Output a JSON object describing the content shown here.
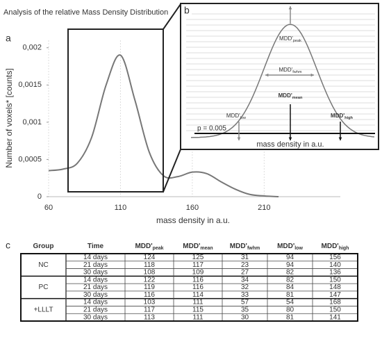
{
  "title": "Analysis of the relative Mass Density Distribution",
  "panel_labels": [
    "a",
    "b",
    "c"
  ],
  "chart_data": {
    "type": "line",
    "x_label": "mass density in a.u.",
    "y_label": "Number of voxels* [counts]",
    "x": [
      60,
      70,
      80,
      90,
      100,
      110,
      120,
      130,
      140,
      150,
      160,
      170,
      180,
      190,
      200,
      210,
      220
    ],
    "series": [
      {
        "color": "#777777",
        "values": [
          0.00035,
          0.00037,
          0.00045,
          0.0008,
          0.0015,
          0.0019,
          0.0013,
          0.0006,
          0.00028,
          0.00027,
          0.00033,
          0.00031,
          0.0002,
          0.0001,
          3e-05,
          1e-05,
          0
        ]
      }
    ],
    "xlim": [
      60,
      263
    ],
    "ylim": [
      0,
      0.0021
    ],
    "xticks": [
      60,
      110,
      160,
      210
    ],
    "yticks": [
      0,
      {
        "value": 0.0005,
        "label": "0,0005"
      },
      {
        "value": 0.001,
        "label": "0,001"
      },
      {
        "value": 0.0015,
        "label": "0,0015"
      },
      {
        "value": 0.002,
        "label": "0,002"
      }
    ],
    "grid": true
  },
  "inset": {
    "labels": [
      {
        "text": "MDD'",
        "sub": "peak"
      },
      {
        "text": "MDD'",
        "sub": "fwhm"
      },
      {
        "text": "MDD'",
        "sub": "mean"
      },
      {
        "text": "MDD'",
        "sub": "low"
      },
      {
        "text": "MDD'",
        "sub": "high"
      }
    ],
    "threshold": "p = 0.005",
    "x_label": "mass density in a.u."
  },
  "table": {
    "header": [
      {
        "text": "Group"
      },
      {
        "text": "Time"
      },
      {
        "text": "MDD'",
        "sub": "peak"
      },
      {
        "text": "MDD'",
        "sub": "mean"
      },
      {
        "text": "MDD'",
        "sub": "fwhm"
      },
      {
        "text": "MDD'",
        "sub": "low"
      },
      {
        "text": "MDD'",
        "sub": "high"
      }
    ],
    "groups": [
      {
        "name": "NC",
        "rows": [
          [
            "14 days",
            124,
            125,
            31,
            94,
            156
          ],
          [
            "21 days",
            118,
            117,
            23,
            94,
            140
          ],
          [
            "30 days",
            108,
            109,
            27,
            82,
            136
          ]
        ]
      },
      {
        "name": "PC",
        "rows": [
          [
            "14 days",
            122,
            116,
            34,
            82,
            150
          ],
          [
            "21 days",
            119,
            116,
            32,
            84,
            148
          ],
          [
            "30 days",
            116,
            114,
            33,
            81,
            147
          ]
        ]
      },
      {
        "name": "+LLLT",
        "rows": [
          [
            "14 days",
            103,
            111,
            57,
            54,
            168
          ],
          [
            "21 days",
            117,
            115,
            35,
            80,
            150
          ],
          [
            "30 days",
            113,
            111,
            30,
            81,
            141
          ]
        ]
      }
    ]
  }
}
